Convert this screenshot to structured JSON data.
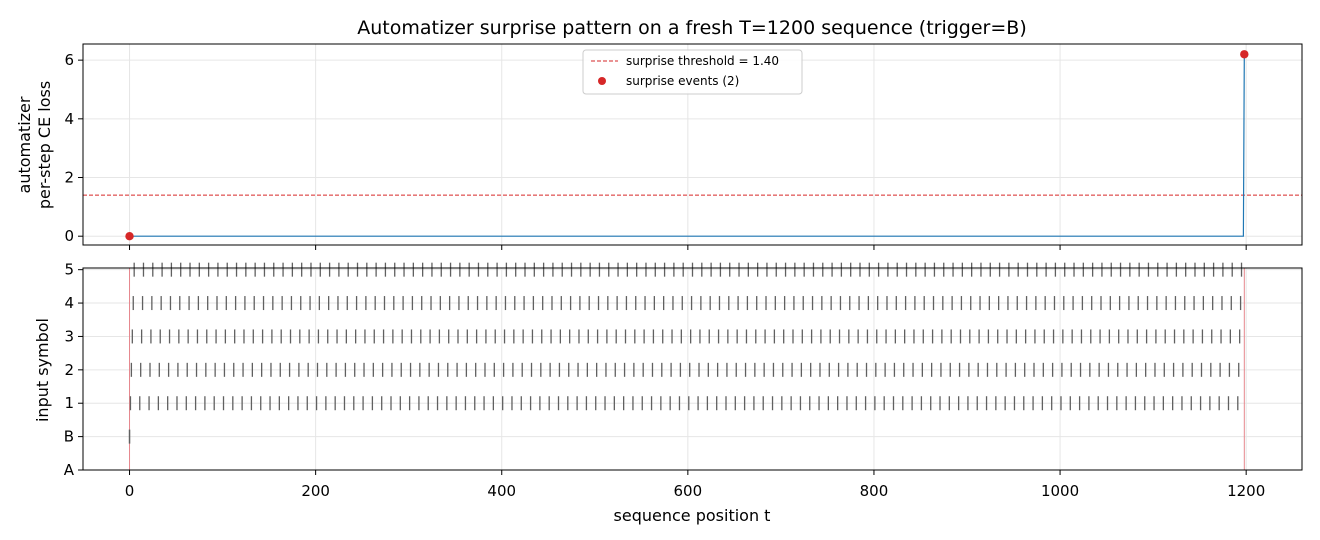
{
  "chart_data": [
    {
      "type": "line",
      "title": "Automatizer surprise pattern on a fresh T=1200 sequence (trigger=B)",
      "ylabel_lines": [
        "automatizer",
        "per-step CE loss"
      ],
      "xlim": [
        -50,
        1260
      ],
      "ylim": [
        -0.3,
        6.55
      ],
      "yticks": [
        0,
        2,
        4,
        6
      ],
      "grid": true,
      "series": [
        {
          "x": [
            0,
            1,
            1197,
            1198,
            1199
          ],
          "y": [
            0.0,
            0.0,
            0.0,
            6.2,
            6.2
          ],
          "color": "#1f77b4"
        }
      ],
      "threshold": {
        "value": 1.4,
        "color": "#d62728",
        "label": "surprise threshold = 1.40"
      },
      "events": {
        "x": [
          0,
          1198
        ],
        "y": [
          0.0,
          6.2
        ],
        "color": "#d62728",
        "label": "surprise events (2)"
      },
      "legend_position": "top-center"
    },
    {
      "type": "scatter",
      "ylabel": "input symbol",
      "xlabel": "sequence position t",
      "xlim": [
        -50,
        1260
      ],
      "xticks": [
        0,
        200,
        400,
        600,
        800,
        1000,
        1200
      ],
      "ylim": [
        0,
        6.05
      ],
      "ytick_labels": [
        "A",
        "B",
        "1",
        "2",
        "3",
        "4",
        "5"
      ],
      "grid": true,
      "marker": "|",
      "marker_color": "#606060",
      "event_line_color": "#e6868d",
      "event_lines_x": [
        0,
        1198
      ],
      "trigger_point": {
        "x": 0,
        "symbol": "B"
      },
      "symbol_cycle": [
        "1",
        "2",
        "3",
        "4",
        "5"
      ],
      "cycle_start": 1,
      "cycle_end": 1198,
      "cycle_marker_step": 2
    }
  ]
}
